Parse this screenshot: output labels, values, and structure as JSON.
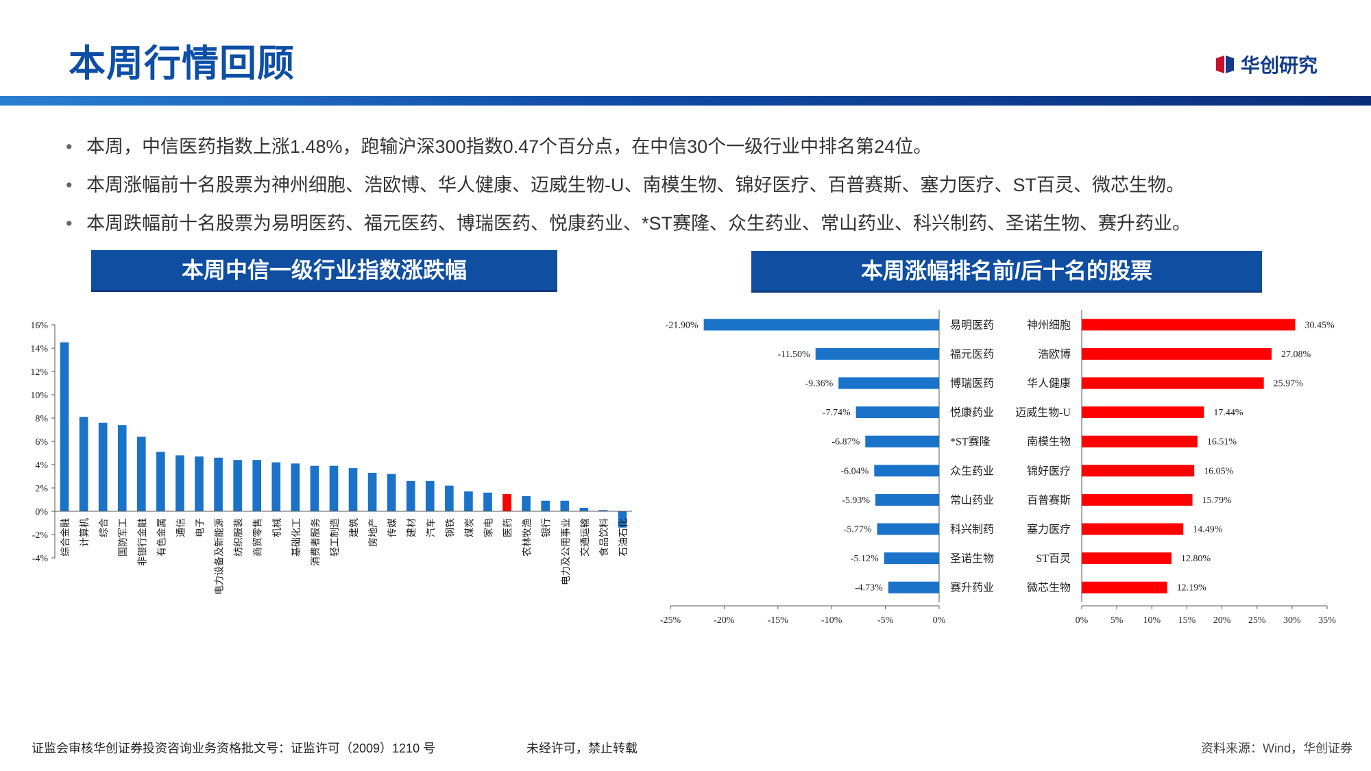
{
  "header": {
    "title": "本周行情回顾",
    "logo_text": "华创研究"
  },
  "bullets": [
    "本周，中信医药指数上涨1.48%，跑输沪深300指数0.47个百分点，在中信30个一级行业中排名第24位。",
    "本周涨幅前十名股票为神州细胞、浩欧博、华人健康、迈威生物-U、南模生物、锦好医疗、百普赛斯、塞力医疗、ST百灵、微芯生物。",
    "本周跌幅前十名股票为易明医药、福元医药、博瑞医药、悦康药业、*ST赛隆、众生药业、常山药业、科兴制药、圣诺生物、赛升药业。"
  ],
  "banners": {
    "left": "本周中信一级行业指数涨跌幅",
    "right": "本周涨幅排名前/后十名的股票"
  },
  "colors": {
    "blue": "#1a73c9",
    "red": "#ff0000",
    "brand": "#0f4ea0"
  },
  "chart_data": [
    {
      "type": "bar",
      "categories": [
        "综合金融",
        "计算机",
        "综合",
        "国防军工",
        "非银行金融",
        "有色金属",
        "通信",
        "电子",
        "电力设备及新能源",
        "纺织服装",
        "商贸零售",
        "机械",
        "基础化工",
        "消费者服务",
        "轻工制造",
        "建筑",
        "房地产",
        "传媒",
        "建材",
        "汽车",
        "钢铁",
        "煤炭",
        "家电",
        "医药",
        "农林牧渔",
        "银行",
        "电力及公用事业",
        "交通运输",
        "食品饮料",
        "石油石化"
      ],
      "values": [
        14.5,
        8.1,
        7.6,
        7.4,
        6.4,
        5.1,
        4.8,
        4.7,
        4.6,
        4.4,
        4.4,
        4.2,
        4.1,
        3.9,
        3.9,
        3.7,
        3.3,
        3.2,
        2.6,
        2.6,
        2.2,
        1.7,
        1.6,
        1.48,
        1.3,
        0.9,
        0.9,
        0.3,
        0.1,
        -1.4
      ],
      "highlight": "医药",
      "yticks": [
        "-4%",
        "-2%",
        "0%",
        "2%",
        "4%",
        "6%",
        "8%",
        "10%",
        "12%",
        "14%",
        "16%"
      ],
      "ylim": [
        -4,
        16
      ]
    },
    {
      "type": "bar",
      "orientation": "horizontal",
      "categories": [
        "易明医药",
        "福元医药",
        "博瑞医药",
        "悦康药业",
        "*ST赛隆",
        "众生药业",
        "常山药业",
        "科兴制药",
        "圣诺生物",
        "赛升药业"
      ],
      "values": [
        -21.9,
        -11.5,
        -9.36,
        -7.74,
        -6.87,
        -6.04,
        -5.93,
        -5.77,
        -5.12,
        -4.73
      ],
      "labels": [
        "-21.90%",
        "-11.50%",
        "-9.36%",
        "-7.74%",
        "-6.87%",
        "-6.04%",
        "-5.93%",
        "-5.77%",
        "-5.12%",
        "-4.73%"
      ],
      "xticks": [
        "-25%",
        "-20%",
        "-15%",
        "-10%",
        "-5%",
        "0%"
      ],
      "xlim": [
        -25,
        0
      ]
    },
    {
      "type": "bar",
      "orientation": "horizontal",
      "categories": [
        "神州细胞",
        "浩欧博",
        "华人健康",
        "迈威生物-U",
        "南模生物",
        "锦好医疗",
        "百普赛斯",
        "塞力医疗",
        "ST百灵",
        "微芯生物"
      ],
      "values": [
        30.45,
        27.08,
        25.97,
        17.44,
        16.51,
        16.05,
        15.79,
        14.49,
        12.8,
        12.19
      ],
      "labels": [
        "30.45%",
        "27.08%",
        "25.97%",
        "17.44%",
        "16.51%",
        "16.05%",
        "15.79%",
        "14.49%",
        "12.80%",
        "12.19%"
      ],
      "xticks": [
        "0%",
        "5%",
        "10%",
        "15%",
        "20%",
        "25%",
        "30%",
        "35%"
      ],
      "xlim": [
        0,
        35
      ]
    }
  ],
  "footer": {
    "left": "证监会审核华创证券投资咨询业务资格批文号：证监许可（2009）1210 号",
    "middle": "未经许可，禁止转载",
    "right": "资料来源：Wind，华创证券"
  }
}
